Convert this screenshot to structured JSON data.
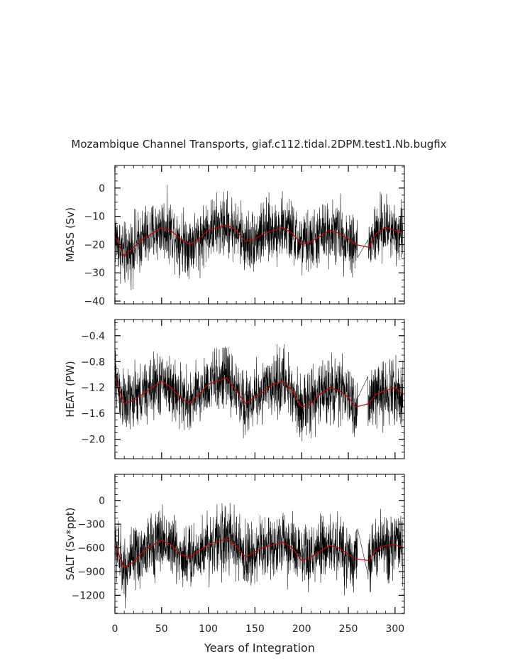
{
  "title": "Mozambique Channel Transports, giaf.c112.tidal.2DPM.test1.Nb.bugfix",
  "xlabel": "Years of Integration",
  "colors": {
    "raw": "#000000",
    "smooth": "#cc0000"
  },
  "chart_data": [
    {
      "type": "line",
      "ylabel": "MASS (Sv)",
      "xlim": [
        0,
        310
      ],
      "ylim": [
        -41,
        8
      ],
      "x_ticks": [
        "0",
        "50",
        "100",
        "150",
        "200",
        "250",
        "300"
      ],
      "y_ticks": [
        {
          "value": 0,
          "label": "0"
        },
        {
          "value": -10,
          "label": "−10"
        },
        {
          "value": -20,
          "label": "−20"
        },
        {
          "value": -30,
          "label": "−30"
        },
        {
          "value": -40,
          "label": "−40"
        }
      ],
      "gap": [
        260,
        271
      ],
      "series": [
        {
          "role": "raw",
          "mean": -18,
          "spread": 8
        },
        {
          "role": "smooth",
          "x": [
            0,
            10,
            20,
            30,
            40,
            50,
            60,
            70,
            80,
            90,
            100,
            110,
            120,
            130,
            140,
            150,
            160,
            170,
            180,
            190,
            200,
            210,
            220,
            230,
            240,
            250,
            258,
            272,
            280,
            290,
            300,
            308
          ],
          "y": [
            -17,
            -24,
            -21,
            -18,
            -16,
            -14,
            -15,
            -18,
            -20,
            -18,
            -15,
            -14,
            -13,
            -15,
            -19,
            -18,
            -16,
            -15,
            -14,
            -16,
            -20,
            -19,
            -17,
            -15,
            -16,
            -18,
            -20,
            -21,
            -16,
            -14,
            -15,
            -16
          ]
        }
      ]
    },
    {
      "type": "line",
      "ylabel": "HEAT (PW)",
      "xlim": [
        0,
        310
      ],
      "ylim": [
        -2.3,
        -0.15
      ],
      "x_ticks": [
        "0",
        "50",
        "100",
        "150",
        "200",
        "250",
        "300"
      ],
      "y_ticks": [
        {
          "value": -0.4,
          "label": "−0.4"
        },
        {
          "value": -0.8,
          "label": "−0.8"
        },
        {
          "value": -1.2,
          "label": "−1.2"
        },
        {
          "value": -1.6,
          "label": "−1.6"
        },
        {
          "value": -2.0,
          "label": "−2.0"
        }
      ],
      "gap": [
        260,
        271
      ],
      "series": [
        {
          "role": "raw",
          "mean": -1.3,
          "spread": 0.35
        },
        {
          "role": "smooth",
          "x": [
            0,
            10,
            20,
            30,
            40,
            50,
            60,
            70,
            80,
            90,
            100,
            110,
            120,
            130,
            140,
            150,
            160,
            170,
            180,
            190,
            200,
            210,
            220,
            230,
            240,
            250,
            258,
            272,
            280,
            290,
            300,
            308
          ],
          "y": [
            -1.05,
            -1.45,
            -1.4,
            -1.3,
            -1.2,
            -1.1,
            -1.2,
            -1.35,
            -1.45,
            -1.3,
            -1.15,
            -1.1,
            -1.05,
            -1.25,
            -1.45,
            -1.35,
            -1.25,
            -1.15,
            -1.1,
            -1.25,
            -1.5,
            -1.45,
            -1.3,
            -1.2,
            -1.25,
            -1.35,
            -1.5,
            -1.45,
            -1.3,
            -1.25,
            -1.2,
            -1.3
          ]
        }
      ]
    },
    {
      "type": "line",
      "ylabel": "SALT (Sv*ppt)",
      "xlim": [
        0,
        310
      ],
      "ylim": [
        -1430,
        330
      ],
      "x_ticks": [
        "0",
        "50",
        "100",
        "150",
        "200",
        "250",
        "300"
      ],
      "y_ticks": [
        {
          "value": 0,
          "label": "0"
        },
        {
          "value": -300,
          "label": "−300"
        },
        {
          "value": -600,
          "label": "−600"
        },
        {
          "value": -900,
          "label": "−900"
        },
        {
          "value": -1200,
          "label": "−1200"
        }
      ],
      "gap": [
        260,
        271
      ],
      "series": [
        {
          "role": "raw",
          "mean": -620,
          "spread": 300
        },
        {
          "role": "smooth",
          "x": [
            0,
            10,
            20,
            30,
            40,
            50,
            60,
            70,
            80,
            90,
            100,
            110,
            120,
            130,
            140,
            150,
            160,
            170,
            180,
            190,
            200,
            210,
            220,
            230,
            240,
            250,
            258,
            272,
            280,
            290,
            300,
            308
          ],
          "y": [
            -560,
            -850,
            -780,
            -650,
            -570,
            -500,
            -560,
            -680,
            -720,
            -640,
            -560,
            -520,
            -480,
            -580,
            -720,
            -650,
            -590,
            -560,
            -530,
            -600,
            -760,
            -720,
            -640,
            -570,
            -600,
            -680,
            -740,
            -760,
            -620,
            -570,
            -560,
            -590
          ]
        }
      ]
    }
  ]
}
